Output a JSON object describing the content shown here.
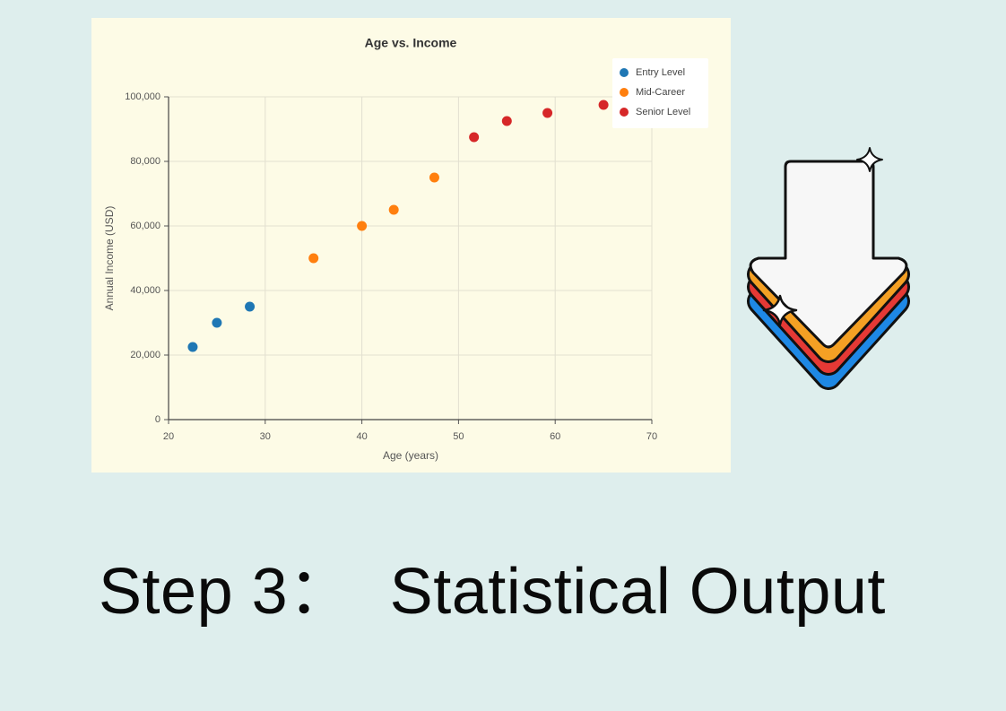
{
  "chart_data": {
    "type": "scatter",
    "title": "Age vs. Income",
    "xlabel": "Age (years)",
    "ylabel": "Annual Income (USD)",
    "series": [
      {
        "name": "Entry Level",
        "color": "#1f77b4",
        "x": [
          22.5,
          25,
          28.4
        ],
        "values": [
          22500,
          30000,
          35000
        ]
      },
      {
        "name": "Mid-Career",
        "color": "#ff7f0e",
        "x": [
          35,
          40,
          43.3,
          47.5
        ],
        "values": [
          50000,
          60000,
          65000,
          75000
        ]
      },
      {
        "name": "Senior Level",
        "color": "#d62728",
        "x": [
          51.6,
          55,
          59.2,
          65
        ],
        "values": [
          87500,
          92500,
          95000,
          97500
        ]
      }
    ],
    "xlim": [
      20,
      70
    ],
    "xticks": [
      20,
      30,
      40,
      50,
      60,
      70
    ],
    "ylim": [
      0,
      100000
    ],
    "yticks": [
      0,
      {
        "value": 20000,
        "label": "20,000"
      },
      {
        "value": 40000,
        "label": "40,000"
      },
      {
        "value": 60000,
        "label": "60,000"
      },
      {
        "value": 80000,
        "label": "80,000"
      },
      {
        "value": 100000,
        "label": "100,000"
      }
    ],
    "grid": true,
    "legend": "upper right"
  },
  "caption": "Step 3：  Statistical Output"
}
